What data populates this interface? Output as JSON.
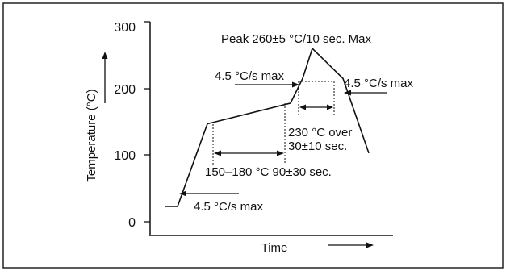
{
  "chart_data": {
    "type": "line",
    "x": [
      0,
      15,
      52,
      155,
      170,
      182,
      220,
      252
    ],
    "y": [
      23,
      23,
      147,
      178,
      215,
      260,
      215,
      103
    ],
    "ylim": [
      0,
      300
    ],
    "yticks": [
      "0",
      "100",
      "200",
      "300"
    ],
    "xlabel": "Time",
    "ylabel": "Temperature (°C)",
    "grid": false,
    "annotations": {
      "peak": "Peak 260±5 °C/10 sec. Max",
      "ramp_up_preheat": "4.5 °C/s max",
      "ramp_up_reflow": "4.5 °C/s max",
      "ramp_down": "4.5 °C/s max",
      "preheat": "150–180 °C 90±30 sec.",
      "reflow_line1": "230 °C over",
      "reflow_line2": "30±10 sec."
    }
  }
}
